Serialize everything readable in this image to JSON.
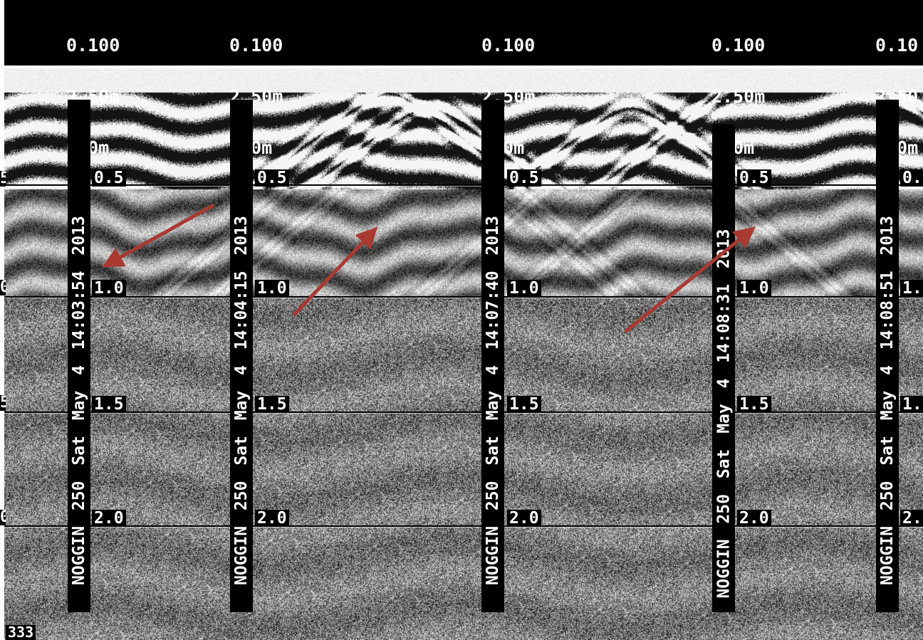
{
  "header_columns": [
    {
      "gain": "0.100",
      "range": "2.50m",
      "offset": "0.0m"
    },
    {
      "gain": "0.100",
      "range": "2.50m",
      "offset": "0.0m"
    },
    {
      "gain": "0.100",
      "range": "2.50m",
      "offset": "0.0m"
    },
    {
      "gain": "0.100",
      "range": "2.50m",
      "offset": "0.0m"
    },
    {
      "gain": "0.10",
      "range": "2.50",
      "offset": "0.0m"
    }
  ],
  "depth_labels": [
    "0.5",
    "1.0",
    "1.5",
    "2.0"
  ],
  "markers": [
    {
      "text": "NOGGIN 250 Sat May 4 14:03:54 2013"
    },
    {
      "text": "NOGGIN 250 Sat May 4 14:04:15 2013"
    },
    {
      "text": "NOGGIN 250 Sat May 4 14:07:40 2013"
    },
    {
      "text": "NOGGIN 250 Sat May 4 14:08:31 2013"
    },
    {
      "text": "NOGGIN 250 Sat May 4 14:08:51 2013"
    }
  ],
  "arrow_color": "#a83a32",
  "corner_label": "333"
}
